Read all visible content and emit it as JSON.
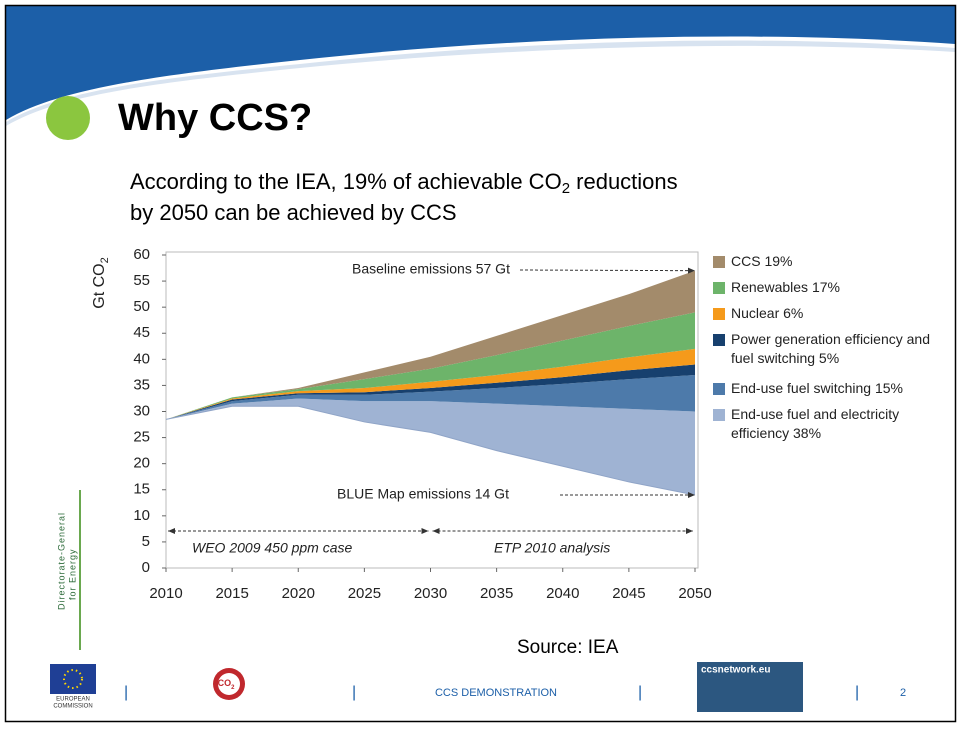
{
  "slide": {
    "title": "Why CCS?",
    "subtitle": [
      "According to the IEA, 19% of achievable CO",
      "2",
      " reductions",
      "by 2050 can be achieved by CCS"
    ],
    "source": "Source: IEA",
    "side_text": [
      "Directorate-General",
      "for Energy"
    ],
    "footer": {
      "commission": [
        "EUROPEAN",
        "COMMISSION"
      ],
      "co2_logo": [
        "CO",
        "2"
      ],
      "center": "CCS DEMONSTRATION",
      "network_logo": "ccsnetwork.eu",
      "page": "2",
      "separator": "|"
    }
  },
  "chart_data": {
    "type": "stacked-area",
    "y_label": [
      "Gt CO",
      "2"
    ],
    "x": [
      2010,
      2015,
      2020,
      2025,
      2030,
      2035,
      2040,
      2045,
      2050
    ],
    "base": [
      28.5,
      31,
      31,
      28,
      26,
      22.5,
      19.5,
      16.5,
      14
    ],
    "series": [
      {
        "name": "End-use fuel and electricity efficiency 38%",
        "color": "#9fb3d3",
        "values": [
          0,
          0.5,
          1.5,
          4,
          6,
          9,
          11.5,
          14,
          16
        ]
      },
      {
        "name": "End-use fuel switching 15%",
        "color": "#4d7aaa",
        "values": [
          0,
          0.5,
          0.7,
          1.2,
          1.8,
          3,
          4.3,
          5.7,
          7
        ]
      },
      {
        "name": "Power generation efficiency and fuel switching 5%",
        "color": "#17406e",
        "values": [
          0,
          0.3,
          0.3,
          0.5,
          0.7,
          1,
          1.3,
          1.7,
          2
        ]
      },
      {
        "name": "Nuclear 6%",
        "color": "#f59a1b",
        "values": [
          0,
          0.2,
          0.4,
          0.8,
          1.2,
          1.5,
          2,
          2.5,
          3
        ]
      },
      {
        "name": "Renewables 17%",
        "color": "#6db46a",
        "values": [
          0,
          0.2,
          0.4,
          1.7,
          2.5,
          3.8,
          5,
          6,
          7
        ]
      },
      {
        "name": "CCS 19%",
        "color": "#a38b6b",
        "values": [
          0,
          0,
          0.2,
          1.3,
          2.3,
          3.7,
          4.9,
          6.1,
          8
        ]
      }
    ],
    "annotations": [
      "Baseline emissions 57 Gt",
      "BLUE Map emissions 14 Gt",
      "WEO 2009 450 ppm case",
      "ETP 2010 analysis"
    ],
    "xlim": [
      2010,
      2050
    ],
    "xticks": [
      2010,
      2015,
      2020,
      2025,
      2030,
      2035,
      2040,
      2045,
      2050
    ],
    "ylim": [
      0,
      60
    ],
    "yticks": [
      0,
      5,
      10,
      15,
      20,
      25,
      30,
      35,
      40,
      45,
      50,
      55,
      60
    ],
    "grid": false
  }
}
